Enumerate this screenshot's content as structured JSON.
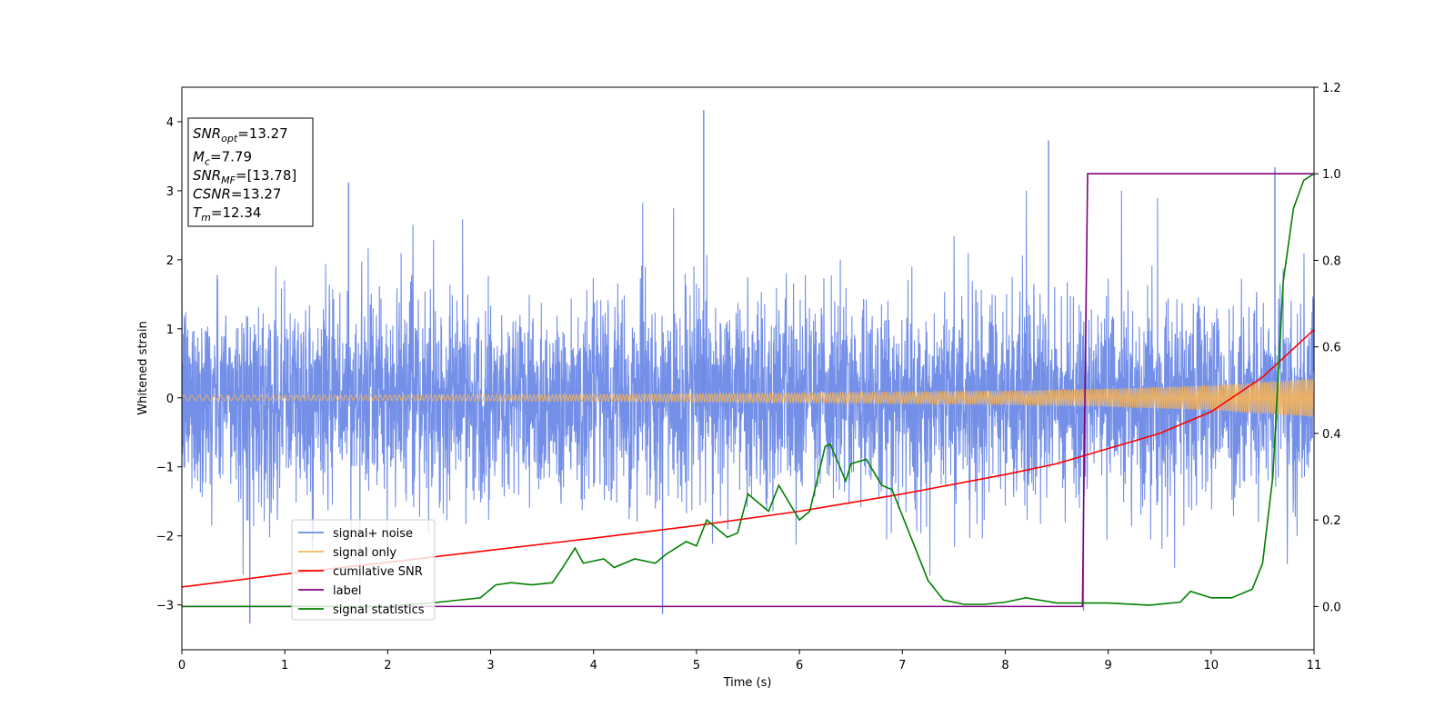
{
  "chart_data": {
    "type": "line",
    "xlabel": "Time (s)",
    "ylabel": "Whitened strain",
    "xlim": [
      0,
      11
    ],
    "ylim": [
      -3.65,
      4.5
    ],
    "y2lim": [
      -0.1,
      1.2
    ],
    "xticks": [
      "0",
      "1",
      "2",
      "3",
      "4",
      "5",
      "6",
      "7",
      "8",
      "9",
      "10",
      "11"
    ],
    "yticks": [
      "4",
      "3",
      "2",
      "1",
      "0",
      "−1",
      "−2",
      "−3"
    ],
    "y2ticks": [
      "1.2",
      "1.0",
      "0.8",
      "0.6",
      "0.4",
      "0.2",
      "0.0"
    ],
    "grid": false,
    "legend_position": "lower-left",
    "info_box": {
      "position": "top-left",
      "lines": [
        {
          "var": "SNR",
          "sub": "opt",
          "value": "=13.27"
        },
        {
          "var": "M",
          "sub": "c",
          "value": "=7.79"
        },
        {
          "var": "SNR",
          "sub": "MF",
          "value": "=[13.78]"
        },
        {
          "var": "CSNR",
          "sub": "",
          "value": "=13.27"
        },
        {
          "var": "T",
          "sub": "m",
          "value": "=12.34"
        }
      ]
    },
    "series": [
      {
        "name": "signal+ noise",
        "axis": "left",
        "color": "#6b89e6",
        "description": "noisy whitened strain, approx. gaussian noise with sigma ~0.7 and spikes up to ~4.2",
        "noise_peaks": [
          {
            "x": 0.66,
            "y": -3.27
          },
          {
            "x": 1.62,
            "y": 3.12
          },
          {
            "x": 5.07,
            "y": 4.17
          },
          {
            "x": 8.42,
            "y": 3.73
          },
          {
            "x": 4.67,
            "y": -3.13
          },
          {
            "x": 8.76,
            "y": -3.08
          },
          {
            "x": 10.62,
            "y": 3.34
          }
        ]
      },
      {
        "name": "signal only",
        "axis": "left",
        "color": "#f5b45a",
        "amplitude_env": [
          [
            0,
            0.04
          ],
          [
            2,
            0.04
          ],
          [
            4,
            0.05
          ],
          [
            6,
            0.07
          ],
          [
            8,
            0.1
          ],
          [
            9,
            0.13
          ],
          [
            10,
            0.18
          ],
          [
            11,
            0.28
          ]
        ]
      },
      {
        "name": "cumilative SNR",
        "axis": "right",
        "color": "#ff0000",
        "points": [
          [
            0,
            0.045
          ],
          [
            1,
            0.075
          ],
          [
            2,
            0.102
          ],
          [
            3,
            0.13
          ],
          [
            4,
            0.158
          ],
          [
            5,
            0.187
          ],
          [
            6,
            0.22
          ],
          [
            7,
            0.26
          ],
          [
            8,
            0.305
          ],
          [
            8.5,
            0.33
          ],
          [
            9,
            0.365
          ],
          [
            9.5,
            0.4
          ],
          [
            10,
            0.45
          ],
          [
            10.5,
            0.53
          ],
          [
            11,
            0.64
          ]
        ]
      },
      {
        "name": "label",
        "axis": "right",
        "color": "#800080",
        "points": [
          [
            0,
            0.0
          ],
          [
            8.75,
            0.0
          ],
          [
            8.8,
            1.0
          ],
          [
            11,
            1.0
          ]
        ]
      },
      {
        "name": "signal statistics",
        "axis": "right",
        "color": "#008000",
        "points": [
          [
            0,
            0.0
          ],
          [
            1,
            0.0
          ],
          [
            2,
            0.0
          ],
          [
            2.5,
            0.01
          ],
          [
            2.9,
            0.02
          ],
          [
            3.05,
            0.05
          ],
          [
            3.2,
            0.055
          ],
          [
            3.4,
            0.05
          ],
          [
            3.6,
            0.055
          ],
          [
            3.7,
            0.09
          ],
          [
            3.82,
            0.135
          ],
          [
            3.9,
            0.1
          ],
          [
            4.1,
            0.11
          ],
          [
            4.2,
            0.09
          ],
          [
            4.4,
            0.11
          ],
          [
            4.6,
            0.1
          ],
          [
            4.7,
            0.12
          ],
          [
            4.9,
            0.15
          ],
          [
            5.0,
            0.14
          ],
          [
            5.1,
            0.2
          ],
          [
            5.3,
            0.16
          ],
          [
            5.4,
            0.17
          ],
          [
            5.5,
            0.26
          ],
          [
            5.7,
            0.22
          ],
          [
            5.8,
            0.28
          ],
          [
            6.0,
            0.2
          ],
          [
            6.1,
            0.22
          ],
          [
            6.25,
            0.37
          ],
          [
            6.3,
            0.375
          ],
          [
            6.45,
            0.29
          ],
          [
            6.5,
            0.33
          ],
          [
            6.65,
            0.34
          ],
          [
            6.8,
            0.28
          ],
          [
            6.9,
            0.27
          ],
          [
            7.1,
            0.15
          ],
          [
            7.25,
            0.06
          ],
          [
            7.4,
            0.015
          ],
          [
            7.6,
            0.005
          ],
          [
            7.8,
            0.005
          ],
          [
            8.0,
            0.01
          ],
          [
            8.2,
            0.02
          ],
          [
            8.5,
            0.008
          ],
          [
            9.0,
            0.008
          ],
          [
            9.4,
            0.003
          ],
          [
            9.7,
            0.01
          ],
          [
            9.8,
            0.035
          ],
          [
            10.0,
            0.02
          ],
          [
            10.2,
            0.02
          ],
          [
            10.4,
            0.04
          ],
          [
            10.5,
            0.1
          ],
          [
            10.6,
            0.3
          ],
          [
            10.7,
            0.75
          ],
          [
            10.8,
            0.92
          ],
          [
            10.9,
            0.985
          ],
          [
            11.0,
            1.0
          ]
        ]
      }
    ]
  }
}
